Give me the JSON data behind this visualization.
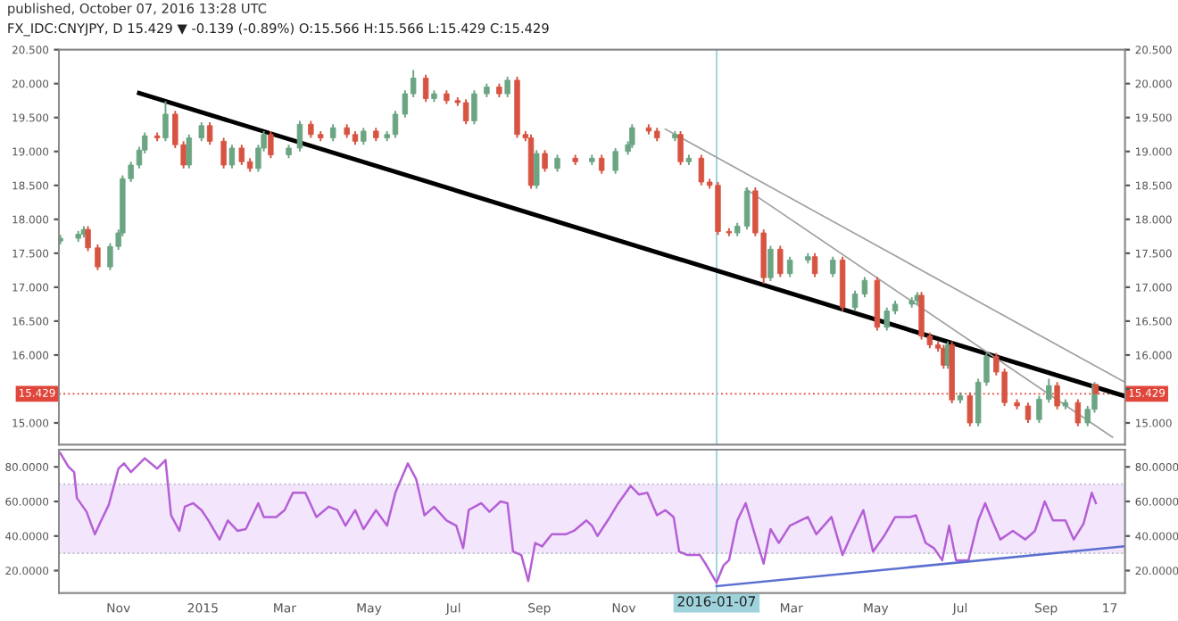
{
  "chart_data": [
    {
      "type": "candlestick",
      "title": "published, October 07, 2016 13:28 UTC",
      "subtitle": "FX_IDC:CNYJPY, D 15.429 ▼ -0.139 (-0.89%) O:15.566 H:15.566 L:15.429 C:15.429",
      "x": [
        "2014-09-20",
        "2014-10-03",
        "2014-10-07",
        "2014-10-10",
        "2014-10-17",
        "2014-10-26",
        "2014-11-01",
        "2014-11-04",
        "2014-11-10",
        "2014-11-16",
        "2014-11-20",
        "2014-11-29",
        "2014-12-05",
        "2014-12-12",
        "2014-12-18",
        "2014-12-22",
        "2014-12-31",
        "2015-01-06",
        "2015-01-16",
        "2015-01-22",
        "2015-01-29",
        "2015-02-04",
        "2015-02-10",
        "2015-02-14",
        "2015-02-19",
        "2015-03-04",
        "2015-03-12",
        "2015-03-20",
        "2015-03-27",
        "2015-04-05",
        "2015-04-15",
        "2015-04-21",
        "2015-04-27",
        "2015-05-06",
        "2015-05-14",
        "2015-05-20",
        "2015-05-27",
        "2015-06-02",
        "2015-06-11",
        "2015-06-17",
        "2015-06-26",
        "2015-07-04",
        "2015-07-10",
        "2015-07-16",
        "2015-07-25",
        "2015-08-03",
        "2015-08-09",
        "2015-08-16",
        "2015-08-22",
        "2015-08-26",
        "2015-08-30",
        "2015-09-05",
        "2015-09-14",
        "2015-09-27",
        "2015-10-09",
        "2015-10-16",
        "2015-10-26",
        "2015-11-04",
        "2015-11-07",
        "2015-11-19",
        "2015-11-25",
        "2015-12-08",
        "2015-12-12",
        "2015-12-18",
        "2015-12-27",
        "2016-01-02",
        "2016-01-08",
        "2016-01-16",
        "2016-01-22",
        "2016-01-29",
        "2016-02-04",
        "2016-02-10",
        "2016-02-15",
        "2016-02-22",
        "2016-02-29",
        "2016-03-13",
        "2016-03-18",
        "2016-03-31",
        "2016-04-07",
        "2016-04-16",
        "2016-04-23",
        "2016-05-02",
        "2016-05-09",
        "2016-05-15",
        "2016-05-27",
        "2016-05-31",
        "2016-06-03",
        "2016-06-09",
        "2016-06-15",
        "2016-06-19",
        "2016-06-22",
        "2016-06-25",
        "2016-07-01",
        "2016-07-08",
        "2016-07-14",
        "2016-07-20",
        "2016-07-27",
        "2016-08-02",
        "2016-08-11",
        "2016-08-19",
        "2016-08-27",
        "2016-09-03",
        "2016-09-09",
        "2016-09-15",
        "2016-09-24",
        "2016-10-01",
        "2016-10-06",
        "2016-10-07"
      ],
      "ohlc": [
        [
          17.68,
          17.77,
          17.63,
          17.72
        ],
        [
          17.72,
          17.83,
          17.67,
          17.78
        ],
        [
          17.78,
          17.9,
          17.73,
          17.85
        ],
        [
          17.85,
          17.9,
          17.53,
          17.58
        ],
        [
          17.58,
          17.63,
          17.25,
          17.3
        ],
        [
          17.3,
          17.65,
          17.25,
          17.6
        ],
        [
          17.6,
          17.85,
          17.55,
          17.8
        ],
        [
          17.8,
          18.65,
          17.75,
          18.6
        ],
        [
          18.6,
          18.85,
          18.55,
          18.8
        ],
        [
          18.8,
          19.07,
          18.75,
          19.02
        ],
        [
          19.02,
          19.28,
          18.97,
          19.23
        ],
        [
          19.23,
          19.28,
          19.15,
          19.2
        ],
        [
          19.2,
          19.74,
          19.15,
          19.55
        ],
        [
          19.55,
          19.6,
          19.05,
          19.1
        ],
        [
          19.1,
          19.15,
          18.75,
          18.8
        ],
        [
          18.8,
          19.25,
          18.75,
          19.2
        ],
        [
          19.2,
          19.43,
          19.15,
          19.38
        ],
        [
          19.38,
          19.43,
          19.1,
          19.15
        ],
        [
          19.15,
          19.2,
          18.75,
          18.8
        ],
        [
          18.8,
          19.1,
          18.75,
          19.05
        ],
        [
          19.05,
          19.1,
          18.8,
          18.85
        ],
        [
          18.85,
          18.9,
          18.7,
          18.75
        ],
        [
          18.75,
          19.1,
          18.7,
          19.05
        ],
        [
          19.05,
          19.3,
          19.0,
          19.25
        ],
        [
          19.25,
          19.3,
          18.9,
          18.95
        ],
        [
          18.95,
          19.1,
          18.9,
          19.05
        ],
        [
          19.05,
          19.45,
          19.0,
          19.4
        ],
        [
          19.4,
          19.45,
          19.2,
          19.25
        ],
        [
          19.25,
          19.3,
          19.15,
          19.2
        ],
        [
          19.2,
          19.4,
          19.15,
          19.35
        ],
        [
          19.35,
          19.4,
          19.2,
          19.25
        ],
        [
          19.25,
          19.3,
          19.1,
          19.15
        ],
        [
          19.15,
          19.35,
          19.1,
          19.3
        ],
        [
          19.3,
          19.35,
          19.15,
          19.2
        ],
        [
          19.2,
          19.3,
          19.15,
          19.25
        ],
        [
          19.25,
          19.6,
          19.2,
          19.55
        ],
        [
          19.55,
          19.9,
          19.5,
          19.85
        ],
        [
          19.85,
          20.2,
          19.8,
          20.08
        ],
        [
          20.08,
          20.13,
          19.73,
          19.78
        ],
        [
          19.78,
          19.9,
          19.73,
          19.85
        ],
        [
          19.85,
          19.9,
          19.7,
          19.75
        ],
        [
          19.75,
          19.8,
          19.67,
          19.72
        ],
        [
          19.72,
          19.77,
          19.4,
          19.45
        ],
        [
          19.45,
          19.9,
          19.4,
          19.85
        ],
        [
          19.85,
          20.0,
          19.8,
          19.95
        ],
        [
          19.95,
          20.0,
          19.8,
          19.85
        ],
        [
          19.85,
          20.1,
          19.8,
          20.05
        ],
        [
          20.05,
          20.1,
          19.2,
          19.25
        ],
        [
          19.25,
          19.3,
          19.15,
          19.2
        ],
        [
          19.2,
          19.25,
          18.45,
          18.5
        ],
        [
          18.5,
          19.02,
          18.45,
          18.97
        ],
        [
          18.97,
          19.02,
          18.7,
          18.75
        ],
        [
          18.75,
          18.95,
          18.7,
          18.9
        ],
        [
          18.9,
          18.95,
          18.8,
          18.85
        ],
        [
          18.85,
          18.95,
          18.8,
          18.9
        ],
        [
          18.9,
          18.95,
          18.67,
          18.72
        ],
        [
          18.72,
          19.05,
          18.67,
          19.0
        ],
        [
          19.0,
          19.15,
          18.95,
          19.1
        ],
        [
          19.1,
          19.4,
          19.05,
          19.35
        ],
        [
          19.35,
          19.4,
          19.25,
          19.3
        ],
        [
          19.3,
          19.35,
          19.15,
          19.2
        ],
        [
          19.2,
          19.3,
          19.15,
          19.25
        ],
        [
          19.25,
          19.3,
          18.8,
          18.85
        ],
        [
          18.85,
          18.95,
          18.8,
          18.9
        ],
        [
          18.9,
          18.95,
          18.5,
          18.55
        ],
        [
          18.55,
          18.6,
          18.45,
          18.5
        ],
        [
          18.5,
          18.55,
          17.77,
          17.82
        ],
        [
          17.82,
          17.87,
          17.75,
          17.8
        ],
        [
          17.8,
          17.95,
          17.75,
          17.9
        ],
        [
          17.9,
          18.47,
          17.85,
          18.42
        ],
        [
          18.42,
          18.47,
          17.75,
          17.8
        ],
        [
          17.8,
          17.85,
          17.05,
          17.14
        ],
        [
          17.14,
          17.61,
          17.09,
          17.56
        ],
        [
          17.56,
          17.61,
          17.15,
          17.2
        ],
        [
          17.2,
          17.45,
          17.15,
          17.4
        ],
        [
          17.4,
          17.5,
          17.35,
          17.45
        ],
        [
          17.45,
          17.5,
          17.15,
          17.2
        ],
        [
          17.2,
          17.45,
          17.15,
          17.4
        ],
        [
          17.4,
          17.45,
          16.65,
          16.7
        ],
        [
          16.7,
          16.95,
          16.65,
          16.9
        ],
        [
          16.9,
          17.15,
          16.85,
          17.1
        ],
        [
          17.1,
          17.15,
          16.36,
          16.41
        ],
        [
          16.41,
          16.7,
          16.36,
          16.65
        ],
        [
          16.65,
          16.8,
          16.6,
          16.75
        ],
        [
          16.75,
          16.85,
          16.7,
          16.8
        ],
        [
          16.8,
          16.93,
          16.75,
          16.88
        ],
        [
          16.88,
          16.93,
          16.23,
          16.28
        ],
        [
          16.28,
          16.33,
          16.1,
          16.15
        ],
        [
          16.15,
          16.2,
          16.05,
          16.1
        ],
        [
          16.1,
          16.15,
          15.8,
          15.85
        ],
        [
          15.85,
          16.2,
          15.8,
          16.15
        ],
        [
          16.15,
          16.2,
          15.29,
          15.34
        ],
        [
          15.34,
          15.45,
          15.29,
          15.4
        ],
        [
          15.4,
          15.45,
          14.95,
          15.0
        ],
        [
          15.0,
          15.65,
          14.95,
          15.6
        ],
        [
          15.6,
          16.03,
          15.55,
          15.98
        ],
        [
          15.98,
          16.03,
          15.7,
          15.75
        ],
        [
          15.75,
          15.8,
          15.25,
          15.3
        ],
        [
          15.3,
          15.35,
          15.2,
          15.25
        ],
        [
          15.25,
          15.3,
          15.0,
          15.05
        ],
        [
          15.05,
          15.4,
          15.0,
          15.35
        ],
        [
          15.35,
          15.65,
          15.3,
          15.55
        ],
        [
          15.55,
          15.6,
          15.2,
          15.25
        ],
        [
          15.25,
          15.35,
          15.2,
          15.3
        ],
        [
          15.3,
          15.35,
          14.95,
          15.0
        ],
        [
          15.0,
          15.25,
          14.95,
          15.2
        ],
        [
          15.2,
          15.6,
          15.15,
          15.568
        ],
        [
          15.566,
          15.566,
          15.429,
          15.429
        ]
      ],
      "colors": [
        "#6ba583",
        "#6ba583",
        "#6ba583",
        "#d75442",
        "#d75442",
        "#6ba583",
        "#6ba583",
        "#6ba583",
        "#6ba583",
        "#6ba583",
        "#6ba583",
        "#d75442",
        "#6ba583",
        "#d75442",
        "#d75442",
        "#6ba583",
        "#6ba583",
        "#d75442",
        "#d75442",
        "#6ba583",
        "#d75442",
        "#d75442",
        "#6ba583",
        "#6ba583",
        "#d75442",
        "#6ba583",
        "#6ba583",
        "#d75442",
        "#d75442",
        "#6ba583",
        "#d75442",
        "#d75442",
        "#6ba583",
        "#d75442",
        "#6ba583",
        "#6ba583",
        "#6ba583",
        "#6ba583",
        "#d75442",
        "#6ba583",
        "#d75442",
        "#d75442",
        "#d75442",
        "#6ba583",
        "#6ba583",
        "#d75442",
        "#6ba583",
        "#d75442",
        "#d75442",
        "#d75442",
        "#6ba583",
        "#d75442",
        "#6ba583",
        "#d75442",
        "#6ba583",
        "#d75442",
        "#6ba583",
        "#6ba583",
        "#6ba583",
        "#d75442",
        "#d75442",
        "#6ba583",
        "#d75442",
        "#6ba583",
        "#d75442",
        "#d75442",
        "#d75442",
        "#d75442",
        "#6ba583",
        "#6ba583",
        "#d75442",
        "#d75442",
        "#6ba583",
        "#d75442",
        "#6ba583",
        "#6ba583",
        "#d75442",
        "#6ba583",
        "#d75442",
        "#6ba583",
        "#6ba583",
        "#d75442",
        "#6ba583",
        "#6ba583",
        "#6ba583",
        "#6ba583",
        "#d75442",
        "#d75442",
        "#d75442",
        "#d75442",
        "#6ba583",
        "#d75442",
        "#6ba583",
        "#d75442",
        "#6ba583",
        "#6ba583",
        "#d75442",
        "#d75442",
        "#d75442",
        "#d75442",
        "#6ba583",
        "#6ba583",
        "#d75442",
        "#6ba583",
        "#d75442",
        "#6ba583",
        "#6ba583",
        "#d75442"
      ],
      "series": [
        {
          "type": "line",
          "color": "#000000",
          "x": [
            "2014-11-16",
            "2016-10-27"
          ],
          "values": [
            19.86,
            15.4
          ]
        },
        {
          "type": "line",
          "color": "#a0a0a0",
          "x": [
            "2015-12-01",
            "2016-10-27"
          ],
          "values": [
            19.33,
            15.61
          ]
        },
        {
          "type": "line",
          "color": "#a0a0a0",
          "x": [
            "2016-01-28",
            "2016-10-19"
          ],
          "values": [
            18.45,
            14.79
          ]
        }
      ],
      "xlim": [
        "2014-09-19",
        "2016-10-28"
      ],
      "ylim": [
        14.68,
        20.5
      ],
      "yticks": [
        {
          "value": 15,
          "label": "15.000"
        },
        {
          "value": 15.5,
          "label": null
        },
        {
          "value": 16,
          "label": "16.000"
        },
        {
          "value": 16.5,
          "label": "16.500"
        },
        {
          "value": 17,
          "label": "17.000"
        },
        {
          "value": 17.5,
          "label": "17.500"
        },
        {
          "value": 18,
          "label": "18.000"
        },
        {
          "value": 18.5,
          "label": "18.500"
        },
        {
          "value": 19,
          "label": "19.000"
        },
        {
          "value": 19.5,
          "label": "19.500"
        },
        {
          "value": 20,
          "label": "20.000"
        },
        {
          "value": 20.5,
          "label": "20.500"
        }
      ],
      "y2lim": [
        14.68,
        20.5
      ],
      "y2ticks": [
        {
          "value": 15,
          "label": "15.000"
        },
        {
          "value": 15.5,
          "label": null
        },
        {
          "value": 16,
          "label": "16.000"
        },
        {
          "value": 16.5,
          "label": "16.500"
        },
        {
          "value": 17,
          "label": "17.000"
        },
        {
          "value": 17.5,
          "label": "17.500"
        },
        {
          "value": 18,
          "label": "18.000"
        },
        {
          "value": 18.5,
          "label": "18.500"
        },
        {
          "value": 19,
          "label": "19.000"
        },
        {
          "value": 19.5,
          "label": "19.500"
        },
        {
          "value": 20,
          "label": "20.000"
        },
        {
          "value": 20.5,
          "label": "20.500"
        }
      ],
      "tick_labels": "y",
      "ref_lines": [
        {
          "axis": "y",
          "value": 15.429,
          "label": "15.429",
          "color": "#e0463a",
          "line_style": "dotted"
        },
        {
          "axis": "x",
          "value": "2016-01-07",
          "color": "#9fd3dc"
        }
      ]
    },
    {
      "type": "line",
      "series": [
        {
          "color": "#b55fd6",
          "x": [
            "2014-09-20",
            "2014-09-26",
            "2014-09-30",
            "2014-10-02",
            "2014-10-09",
            "2014-10-15",
            "2014-10-19",
            "2014-10-25",
            "2014-11-01",
            "2014-11-05",
            "2014-11-10",
            "2014-11-20",
            "2014-11-29",
            "2014-12-05",
            "2014-12-09",
            "2014-12-15",
            "2014-12-19",
            "2014-12-25",
            "2014-12-31",
            "2015-01-05",
            "2015-01-13",
            "2015-01-19",
            "2015-01-26",
            "2015-02-01",
            "2015-02-10",
            "2015-02-14",
            "2015-02-23",
            "2015-03-01",
            "2015-03-07",
            "2015-03-16",
            "2015-03-24",
            "2015-04-02",
            "2015-04-08",
            "2015-04-14",
            "2015-04-21",
            "2015-04-27",
            "2015-05-06",
            "2015-05-14",
            "2015-05-20",
            "2015-05-29",
            "2015-06-04",
            "2015-06-10",
            "2015-06-17",
            "2015-06-26",
            "2015-07-03",
            "2015-07-08",
            "2015-07-12",
            "2015-07-21",
            "2015-07-27",
            "2015-08-04",
            "2015-08-09",
            "2015-08-13",
            "2015-08-19",
            "2015-08-24",
            "2015-08-29",
            "2015-09-03",
            "2015-09-10",
            "2015-09-20",
            "2015-09-26",
            "2015-10-05",
            "2015-10-09",
            "2015-10-13",
            "2015-10-22",
            "2015-10-28",
            "2015-11-06",
            "2015-11-12",
            "2015-11-18",
            "2015-11-25",
            "2015-12-01",
            "2015-12-07",
            "2015-12-11",
            "2015-12-17",
            "2015-12-26",
            "2015-12-30",
            "2016-01-07",
            "2016-01-12",
            "2016-01-16",
            "2016-01-22",
            "2016-01-28",
            "2016-02-04",
            "2016-02-10",
            "2016-02-15",
            "2016-02-21",
            "2016-02-29",
            "2016-03-13",
            "2016-03-19",
            "2016-03-30",
            "2016-04-07",
            "2016-04-13",
            "2016-04-22",
            "2016-04-29",
            "2016-05-07",
            "2016-05-15",
            "2016-05-26",
            "2016-05-30",
            "2016-06-06",
            "2016-06-12",
            "2016-06-18",
            "2016-06-23",
            "2016-06-28",
            "2016-07-07",
            "2016-07-14",
            "2016-07-19",
            "2016-07-24",
            "2016-07-30",
            "2016-08-08",
            "2016-08-17",
            "2016-08-24",
            "2016-08-31",
            "2016-09-06",
            "2016-09-15",
            "2016-09-21",
            "2016-09-28",
            "2016-10-04",
            "2016-10-07"
          ],
          "values": [
            88,
            80,
            77,
            62,
            54,
            41,
            48,
            58,
            79,
            82,
            77,
            85,
            79,
            84,
            52,
            43,
            57,
            59,
            55,
            49,
            38,
            49,
            43,
            44,
            59,
            51,
            51,
            55,
            65,
            65,
            51,
            57,
            55,
            46,
            55,
            44,
            55,
            46,
            65,
            82,
            73,
            52,
            57,
            49,
            46,
            33,
            55,
            59,
            54,
            60,
            59,
            31,
            29,
            14,
            36,
            34,
            41,
            41,
            43,
            49,
            46,
            40,
            51,
            59,
            69,
            64,
            65,
            52,
            55,
            51,
            31,
            29,
            29,
            24,
            13,
            23,
            26,
            49,
            59,
            40,
            24,
            44,
            36,
            46,
            51,
            41,
            51,
            29,
            40,
            55,
            31,
            40,
            51,
            51,
            52,
            36,
            33,
            26,
            46,
            26,
            26,
            49,
            59,
            49,
            38,
            43,
            38,
            43,
            60,
            49,
            49,
            38,
            47,
            65,
            59
          ]
        },
        {
          "color": "#5b6fd0",
          "x": [
            "2016-01-07",
            "2016-10-27"
          ],
          "values": [
            11,
            34
          ]
        }
      ],
      "xlim": [
        "2014-09-19",
        "2016-10-28"
      ],
      "ylim": [
        7,
        90
      ],
      "xticks": [
        {
          "value": "2014-11-01",
          "label": "Nov"
        },
        {
          "value": "2015-01-01",
          "label": "2015"
        },
        {
          "value": "2015-03-01",
          "label": "Mar"
        },
        {
          "value": "2015-05-01",
          "label": "May"
        },
        {
          "value": "2015-07-01",
          "label": "Jul"
        },
        {
          "value": "2015-09-01",
          "label": "Sep"
        },
        {
          "value": "2015-11-01",
          "label": "Nov"
        },
        {
          "value": "2016-03-01",
          "label": "Mar"
        },
        {
          "value": "2016-05-01",
          "label": "May"
        },
        {
          "value": "2016-07-01",
          "label": "Jul"
        },
        {
          "value": "2016-09-01",
          "label": "Sep"
        },
        {
          "value": "2016-10-17",
          "label": "17"
        }
      ],
      "yticks": [
        {
          "value": 20,
          "label": "20.0000"
        },
        {
          "value": 40,
          "label": "40.0000"
        },
        {
          "value": 60,
          "label": "60.0000"
        },
        {
          "value": 80,
          "label": "80.0000"
        }
      ],
      "y2lim": [
        7,
        90
      ],
      "y2ticks": [
        {
          "value": 20,
          "label": "20.0000"
        },
        {
          "value": 40,
          "label": "40.0000"
        },
        {
          "value": 60,
          "label": "60.0000"
        },
        {
          "value": 80,
          "label": "80.0000"
        }
      ],
      "ref_lines": [
        {
          "axis": "y",
          "value": 30,
          "color": "#b8b8c8",
          "line_style": "dotted"
        },
        {
          "axis": "y",
          "value": 70,
          "color": "#b8b8c8",
          "line_style": "dotted"
        },
        {
          "axis": "x",
          "value": "2016-01-07",
          "label": "2016-01-07",
          "color": "#9fd3dc"
        }
      ],
      "bands": [
        {
          "axis": "y",
          "from": 30,
          "to": 70,
          "color": "#f3e6fc"
        }
      ]
    }
  ]
}
